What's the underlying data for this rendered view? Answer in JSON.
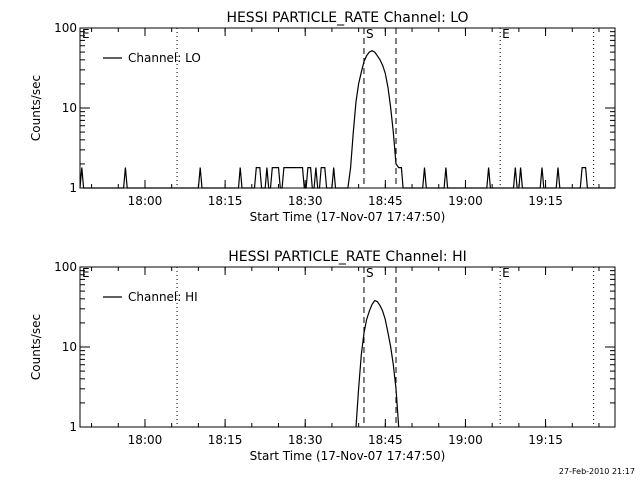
{
  "footer": {
    "timestamp": "27-Feb-2010 21:17"
  },
  "chart_data": [
    {
      "type": "line",
      "title": "HESSI PARTICLE_RATE Channel: LO",
      "xlabel": "Start Time (17-Nov-07 17:47:50)",
      "ylabel": "Counts/sec",
      "yscale": "log",
      "ylim": [
        1,
        100
      ],
      "xlim": [
        "17:47:50",
        "19:28:00"
      ],
      "xticks": [
        "18:00",
        "18:15",
        "18:30",
        "18:45",
        "19:00",
        "19:15"
      ],
      "yticks": [
        "1",
        "10",
        "100"
      ],
      "legend": {
        "label": "Channel: LO",
        "position": "top-left"
      },
      "markers": [
        {
          "label": "E",
          "time": "17:47:50",
          "style": "dotted"
        },
        {
          "label": "",
          "time": "18:06:00",
          "style": "dotted"
        },
        {
          "label": "S",
          "time": "18:41:00",
          "style": "dashed"
        },
        {
          "label": "",
          "time": "18:47:00",
          "style": "dashed"
        },
        {
          "label": "E",
          "time": "19:06:30",
          "style": "dotted"
        },
        {
          "label": "",
          "time": "19:24:00",
          "style": "dotted"
        }
      ],
      "series": [
        {
          "name": "Channel: LO",
          "points": [
            [
              "17:47:50",
              1
            ],
            [
              "17:48:10",
              1.8
            ],
            [
              "17:48:30",
              1
            ],
            [
              "17:56:00",
              1
            ],
            [
              "17:56:20",
              1.8
            ],
            [
              "17:56:40",
              1
            ],
            [
              "18:10:00",
              1
            ],
            [
              "18:10:20",
              1.8
            ],
            [
              "18:10:40",
              1
            ],
            [
              "18:17:30",
              1
            ],
            [
              "18:17:50",
              1.8
            ],
            [
              "18:18:10",
              1
            ],
            [
              "18:20:30",
              1
            ],
            [
              "18:20:50",
              1.8
            ],
            [
              "18:21:30",
              1.8
            ],
            [
              "18:21:50",
              1
            ],
            [
              "18:22:30",
              1
            ],
            [
              "18:22:50",
              1.8
            ],
            [
              "18:23:10",
              1
            ],
            [
              "18:23:30",
              1
            ],
            [
              "18:23:50",
              1.8
            ],
            [
              "18:25:00",
              1.8
            ],
            [
              "18:25:20",
              1
            ],
            [
              "18:25:40",
              1
            ],
            [
              "18:26:00",
              1.8
            ],
            [
              "18:29:30",
              1.8
            ],
            [
              "18:29:50",
              1
            ],
            [
              "18:30:10",
              1
            ],
            [
              "18:30:30",
              1.8
            ],
            [
              "18:31:00",
              1.8
            ],
            [
              "18:31:20",
              1
            ],
            [
              "18:31:40",
              1
            ],
            [
              "18:32:00",
              1.8
            ],
            [
              "18:32:20",
              1
            ],
            [
              "18:32:40",
              1
            ],
            [
              "18:33:00",
              1.8
            ],
            [
              "18:33:40",
              1.8
            ],
            [
              "18:34:00",
              1
            ],
            [
              "18:35:00",
              1
            ],
            [
              "18:35:20",
              1.8
            ],
            [
              "18:35:40",
              1
            ],
            [
              "18:38:00",
              1
            ],
            [
              "18:38:30",
              1.8
            ],
            [
              "18:39:00",
              5
            ],
            [
              "18:39:30",
              12
            ],
            [
              "18:40:00",
              20
            ],
            [
              "18:40:30",
              28
            ],
            [
              "18:41:00",
              38
            ],
            [
              "18:41:30",
              45
            ],
            [
              "18:42:00",
              50
            ],
            [
              "18:42:30",
              52
            ],
            [
              "18:43:00",
              50
            ],
            [
              "18:43:30",
              45
            ],
            [
              "18:44:00",
              40
            ],
            [
              "18:44:30",
              34
            ],
            [
              "18:45:00",
              27
            ],
            [
              "18:45:30",
              18
            ],
            [
              "18:46:00",
              10
            ],
            [
              "18:46:30",
              5
            ],
            [
              "18:47:00",
              2
            ],
            [
              "18:47:30",
              1.8
            ],
            [
              "18:48:00",
              1.8
            ],
            [
              "18:48:20",
              1
            ],
            [
              "18:52:00",
              1
            ],
            [
              "18:52:20",
              1.8
            ],
            [
              "18:52:40",
              1
            ],
            [
              "18:56:00",
              1
            ],
            [
              "18:56:20",
              1.8
            ],
            [
              "18:56:40",
              1
            ],
            [
              "19:04:00",
              1
            ],
            [
              "19:04:20",
              1.8
            ],
            [
              "19:04:40",
              1
            ],
            [
              "19:09:00",
              1
            ],
            [
              "19:09:20",
              1.8
            ],
            [
              "19:09:40",
              1
            ],
            [
              "19:10:00",
              1
            ],
            [
              "19:10:20",
              1.8
            ],
            [
              "19:10:40",
              1
            ],
            [
              "19:14:00",
              1
            ],
            [
              "19:14:20",
              1.8
            ],
            [
              "19:14:40",
              1
            ],
            [
              "19:17:00",
              1
            ],
            [
              "19:17:20",
              1.8
            ],
            [
              "19:17:40",
              1
            ],
            [
              "19:21:30",
              1
            ],
            [
              "19:21:50",
              1.8
            ],
            [
              "19:22:30",
              1.8
            ],
            [
              "19:22:50",
              1
            ],
            [
              "19:28:00",
              1
            ]
          ]
        }
      ]
    },
    {
      "type": "line",
      "title": "HESSI PARTICLE_RATE Channel: HI",
      "xlabel": "Start Time (17-Nov-07 17:47:50)",
      "ylabel": "Counts/sec",
      "yscale": "log",
      "ylim": [
        1,
        100
      ],
      "xlim": [
        "17:47:50",
        "19:28:00"
      ],
      "xticks": [
        "18:00",
        "18:15",
        "18:30",
        "18:45",
        "19:00",
        "19:15"
      ],
      "yticks": [
        "1",
        "10",
        "100"
      ],
      "legend": {
        "label": "Channel: HI",
        "position": "top-left"
      },
      "markers": [
        {
          "label": "E",
          "time": "17:47:50",
          "style": "dotted"
        },
        {
          "label": "",
          "time": "18:06:00",
          "style": "dotted"
        },
        {
          "label": "S",
          "time": "18:41:00",
          "style": "dashed"
        },
        {
          "label": "",
          "time": "18:47:00",
          "style": "dashed"
        },
        {
          "label": "E",
          "time": "19:06:30",
          "style": "dotted"
        },
        {
          "label": "",
          "time": "19:24:00",
          "style": "dotted"
        }
      ],
      "series": [
        {
          "name": "Channel: HI",
          "points": [
            [
              "18:39:30",
              1
            ],
            [
              "18:40:00",
              3
            ],
            [
              "18:40:30",
              8
            ],
            [
              "18:41:00",
              15
            ],
            [
              "18:41:30",
              22
            ],
            [
              "18:42:00",
              28
            ],
            [
              "18:42:30",
              34
            ],
            [
              "18:43:00",
              38
            ],
            [
              "18:43:30",
              37
            ],
            [
              "18:44:00",
              33
            ],
            [
              "18:44:30",
              28
            ],
            [
              "18:45:00",
              22
            ],
            [
              "18:45:30",
              15
            ],
            [
              "18:46:00",
              10
            ],
            [
              "18:46:30",
              6
            ],
            [
              "18:47:00",
              3
            ],
            [
              "18:47:30",
              1
            ]
          ]
        }
      ]
    }
  ]
}
